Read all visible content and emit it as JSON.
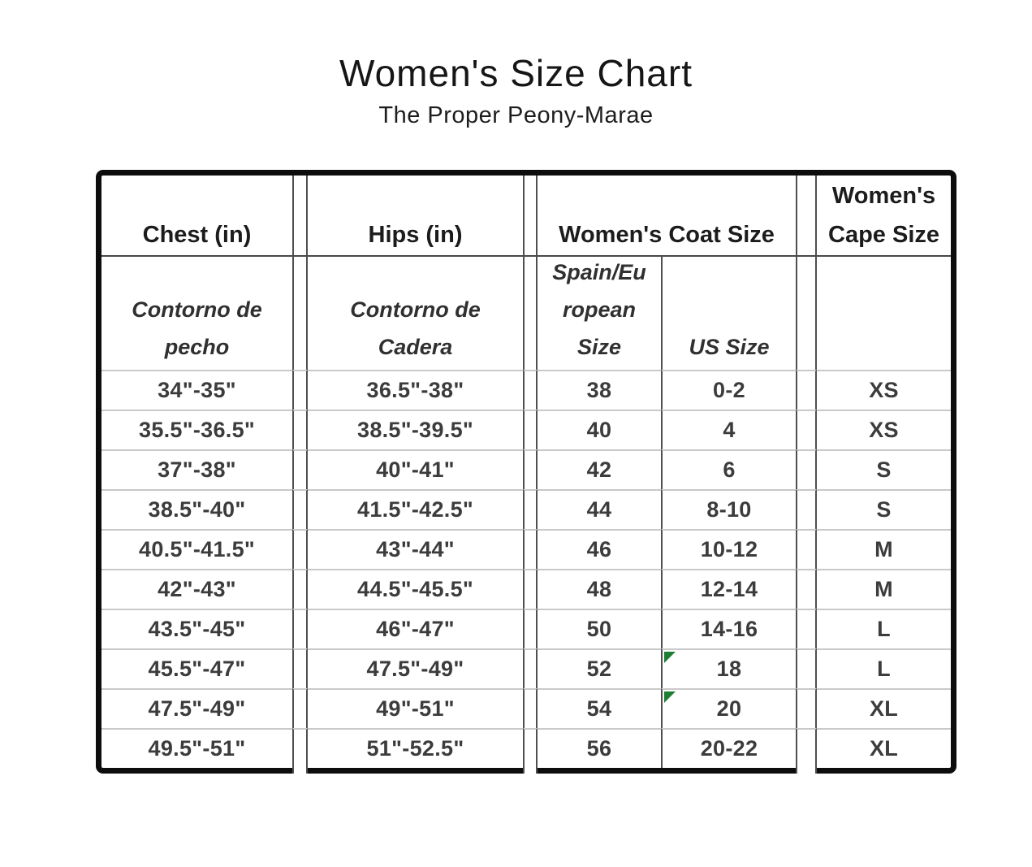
{
  "title": "Women's Size Chart",
  "subtitle": "The Proper Peony-Marae",
  "headers": {
    "chest": "Chest (in)",
    "hips": "Hips (in)",
    "coat": "Women's Coat Size",
    "cape": "Women's Cape Size"
  },
  "subheaders": {
    "chest_es": "Contorno de pecho",
    "hips_es": "Contorno de Cadera",
    "eu_size": "Spain/European Size",
    "us_size": "US Size"
  },
  "rows": [
    {
      "chest": "34\"-35\"",
      "hips": "36.5\"-38\"",
      "eu": "38",
      "us": "0-2",
      "cape": "XS",
      "us_flag": false
    },
    {
      "chest": "35.5\"-36.5\"",
      "hips": "38.5\"-39.5\"",
      "eu": "40",
      "us": "4",
      "cape": "XS",
      "us_flag": false
    },
    {
      "chest": "37\"-38\"",
      "hips": "40\"-41\"",
      "eu": "42",
      "us": "6",
      "cape": "S",
      "us_flag": false
    },
    {
      "chest": "38.5\"-40\"",
      "hips": "41.5\"-42.5\"",
      "eu": "44",
      "us": "8-10",
      "cape": "S",
      "us_flag": false
    },
    {
      "chest": "40.5\"-41.5\"",
      "hips": "43\"-44\"",
      "eu": "46",
      "us": "10-12",
      "cape": "M",
      "us_flag": false
    },
    {
      "chest": "42\"-43\"",
      "hips": "44.5\"-45.5\"",
      "eu": "48",
      "us": "12-14",
      "cape": "M",
      "us_flag": false
    },
    {
      "chest": "43.5\"-45\"",
      "hips": "46\"-47\"",
      "eu": "50",
      "us": "14-16",
      "cape": "L",
      "us_flag": false
    },
    {
      "chest": "45.5\"-47\"",
      "hips": "47.5\"-49\"",
      "eu": "52",
      "us": "18",
      "cape": "L",
      "us_flag": true
    },
    {
      "chest": "47.5\"-49\"",
      "hips": "49\"-51\"",
      "eu": "54",
      "us": "20",
      "cape": "XL",
      "us_flag": true
    },
    {
      "chest": "49.5\"-51\"",
      "hips": "51\"-52.5\"",
      "eu": "56",
      "us": "20-22",
      "cape": "XL",
      "us_flag": false
    }
  ],
  "colors": {
    "flag_green": "#1e7e34",
    "table_border": "#0d0d0d",
    "section_line": "#4f4f4f",
    "row_line": "#c9c9c9",
    "data_text": "#3c3c3c"
  }
}
